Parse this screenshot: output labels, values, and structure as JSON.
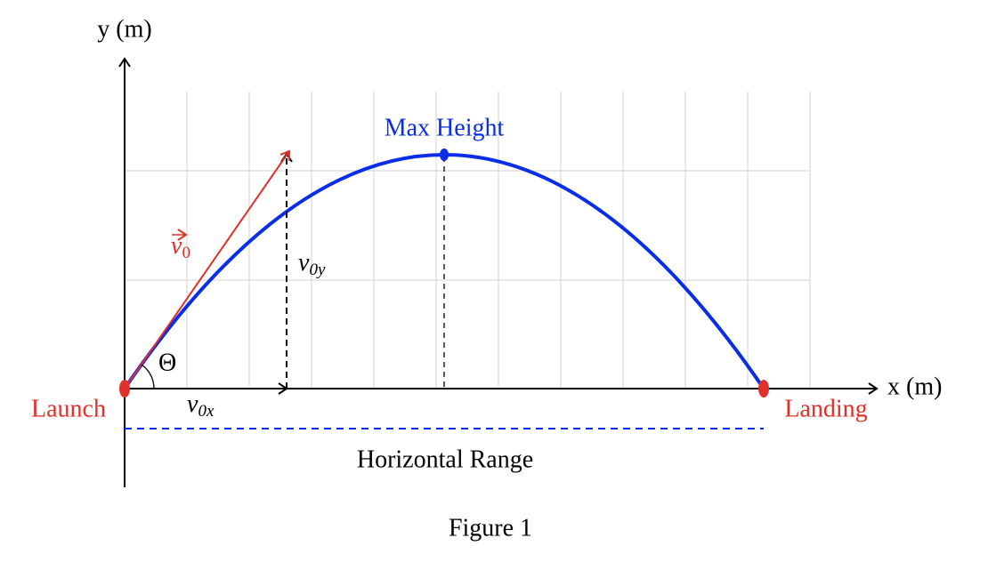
{
  "axes": {
    "y_label": "y (m)",
    "x_label": "x (m)"
  },
  "annotations": {
    "max_height": "Max Height",
    "velocity": {
      "base": "v",
      "sub": "0"
    },
    "velocity_y": {
      "base": "v",
      "sub": "0y"
    },
    "velocity_x": {
      "base": "v",
      "sub": "0x"
    },
    "angle": "Θ",
    "launch": "Launch",
    "landing": "Landing",
    "range": "Horizontal Range"
  },
  "caption": "Figure 1"
}
